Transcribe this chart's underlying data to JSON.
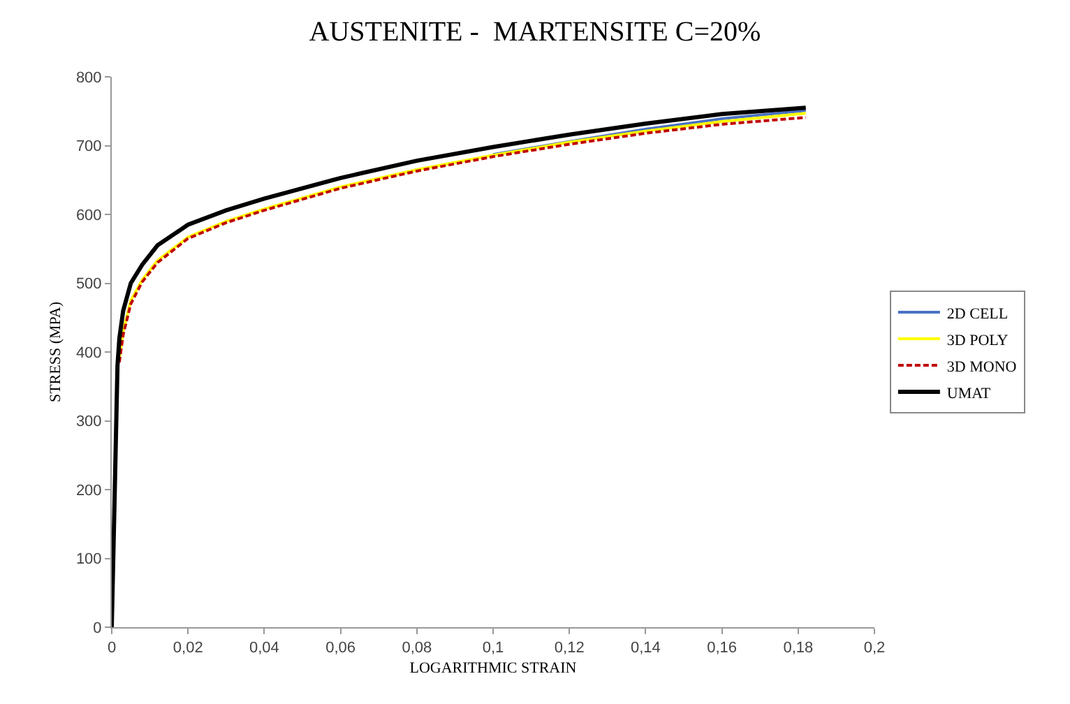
{
  "chart_data": {
    "type": "line",
    "title": "AUSTENITE -  MARTENSITE C=20%",
    "xlabel": "LOGARITHMIC STRAIN",
    "ylabel": "STRESS (MPA)",
    "x": [
      0,
      0.0008,
      0.0015,
      0.002,
      0.003,
      0.005,
      0.008,
      0.012,
      0.02,
      0.03,
      0.04,
      0.06,
      0.08,
      0.1,
      0.12,
      0.14,
      0.16,
      0.182
    ],
    "series": [
      {
        "name": "2D CELL",
        "color": "#4a72c4",
        "values": [
          null,
          null,
          null,
          null,
          null,
          null,
          null,
          null,
          null,
          null,
          null,
          null,
          null,
          687,
          706,
          724,
          739,
          751
        ]
      },
      {
        "name": "3D POLY",
        "color": "#ffff00",
        "values": [
          null,
          null,
          null,
          390,
          430,
          475,
          505,
          533,
          567,
          590,
          608,
          640,
          665,
          686,
          705,
          721,
          735,
          747
        ]
      },
      {
        "name": "3D MONO",
        "color": "#c00000",
        "line_style": "dashed",
        "values": [
          null,
          null,
          null,
          385,
          425,
          470,
          502,
          530,
          565,
          588,
          606,
          638,
          663,
          684,
          702,
          718,
          731,
          741
        ]
      },
      {
        "name": "UMAT",
        "color": "#000000",
        "values": [
          0,
          200,
          380,
          420,
          460,
          500,
          527,
          555,
          585,
          606,
          623,
          653,
          678,
          698,
          716,
          732,
          746,
          755
        ]
      }
    ],
    "xlim": [
      0,
      0.2
    ],
    "xticks": [
      0,
      {
        "value": 0.02,
        "label": "0,02"
      },
      {
        "value": 0.04,
        "label": "0,04"
      },
      {
        "value": 0.06,
        "label": "0,06"
      },
      {
        "value": 0.08,
        "label": "0,08"
      },
      {
        "value": 0.1,
        "label": "0,1"
      },
      {
        "value": 0.12,
        "label": "0,12"
      },
      {
        "value": 0.14,
        "label": "0,14"
      },
      {
        "value": 0.16,
        "label": "0,16"
      },
      {
        "value": 0.18,
        "label": "0,18"
      },
      {
        "value": 0.2,
        "label": "0,2"
      }
    ],
    "ylim": [
      0,
      800
    ],
    "yticks": [
      0,
      100,
      200,
      300,
      400,
      500,
      600,
      700,
      800
    ],
    "grid": false,
    "legend": "right",
    "line_style": "solid",
    "marker": "none"
  }
}
